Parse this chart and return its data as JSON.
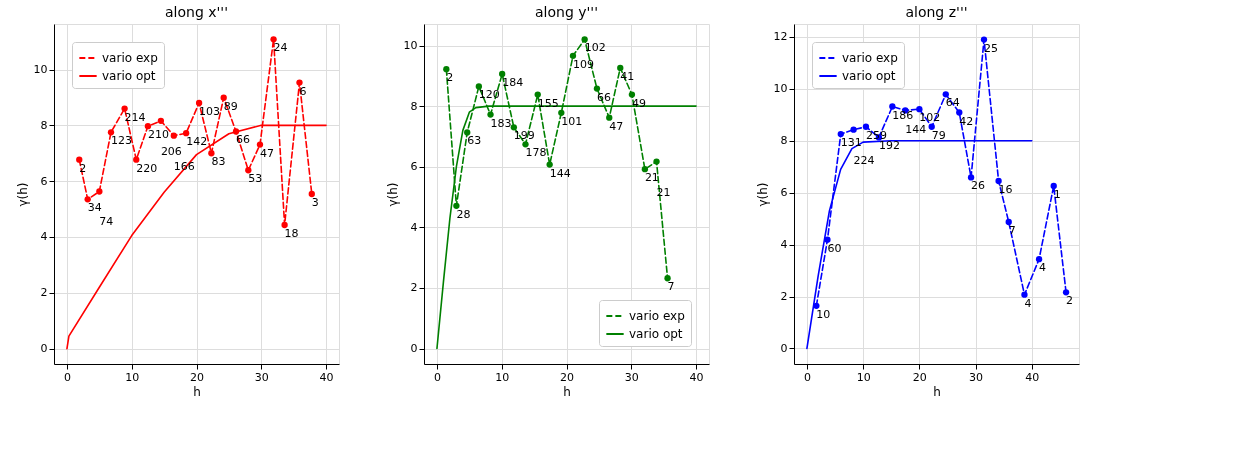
{
  "chart_data": [
    {
      "type": "line",
      "title": "along x'''",
      "xlabel": "h",
      "ylabel": "γ(h)",
      "xlim": [
        -2,
        42
      ],
      "ylim": [
        -0.55,
        11.63
      ],
      "xticks": [
        0,
        10,
        20,
        30,
        40
      ],
      "yticks": [
        0,
        2,
        4,
        6,
        8,
        10
      ],
      "grid": true,
      "legend": "top left",
      "series": [
        {
          "name": "vario exp",
          "color": "#ff0000",
          "line_style": "dashed",
          "marker": "circle",
          "x": [
            1.9,
            3.2,
            5.0,
            6.8,
            8.9,
            10.7,
            12.5,
            14.5,
            16.5,
            18.4,
            20.4,
            22.3,
            24.2,
            26.1,
            28.0,
            29.8,
            31.9,
            33.6,
            35.9,
            37.8
          ],
          "values": [
            6.77,
            5.35,
            5.63,
            7.75,
            8.6,
            6.77,
            7.97,
            8.16,
            7.63,
            7.72,
            8.8,
            7.0,
            8.99,
            7.78,
            6.39,
            7.31,
            11.08,
            4.43,
            9.53,
            5.54
          ]
        },
        {
          "name": "vario opt",
          "color": "#ff0000",
          "line_style": "solid",
          "marker": "none",
          "x": [
            0,
            0.3,
            5,
            10,
            15,
            20,
            25,
            30,
            35,
            40
          ],
          "values": [
            0,
            0.45,
            2.2,
            4.05,
            5.6,
            6.95,
            7.7,
            8.0,
            8.0,
            8.0
          ]
        }
      ],
      "annotations": [
        {
          "text": "2",
          "x": 1.9,
          "y": 6.77
        },
        {
          "text": "34",
          "x": 3.2,
          "y": 5.35
        },
        {
          "text": "74",
          "x": 5.0,
          "y": 5.63
        },
        {
          "text": "123",
          "x": 6.8,
          "y": 7.75
        },
        {
          "text": "214",
          "x": 8.9,
          "y": 8.6
        },
        {
          "text": "220",
          "x": 10.7,
          "y": 6.77
        },
        {
          "text": "210",
          "x": 12.5,
          "y": 7.97
        },
        {
          "text": "206",
          "x": 14.5,
          "y": 8.16
        },
        {
          "text": "166",
          "x": 16.5,
          "y": 7.63
        },
        {
          "text": "142",
          "x": 18.4,
          "y": 7.72
        },
        {
          "text": "103",
          "x": 20.4,
          "y": 8.8
        },
        {
          "text": "83",
          "x": 22.3,
          "y": 7.0
        },
        {
          "text": "89",
          "x": 24.2,
          "y": 8.99
        },
        {
          "text": "66",
          "x": 26.1,
          "y": 7.78
        },
        {
          "text": "53",
          "x": 28.0,
          "y": 6.39
        },
        {
          "text": "47",
          "x": 29.8,
          "y": 7.31
        },
        {
          "text": "24",
          "x": 31.9,
          "y": 11.08
        },
        {
          "text": "18",
          "x": 33.6,
          "y": 4.43
        },
        {
          "text": "6",
          "x": 35.9,
          "y": 9.53
        },
        {
          "text": "3",
          "x": 37.8,
          "y": 5.54
        }
      ]
    },
    {
      "type": "line",
      "title": "along y'''",
      "xlabel": "h",
      "ylabel": "γ(h)",
      "xlim": [
        -2,
        42
      ],
      "ylim": [
        -0.51,
        10.71
      ],
      "xticks": [
        0,
        10,
        20,
        30,
        40
      ],
      "yticks": [
        0,
        2,
        4,
        6,
        8,
        10
      ],
      "grid": true,
      "legend": "bottom right",
      "series": [
        {
          "name": "vario exp",
          "color": "#008000",
          "line_style": "dashed",
          "marker": "circle",
          "x": [
            1.45,
            3.0,
            4.67,
            6.47,
            8.27,
            10.07,
            11.87,
            13.67,
            15.56,
            17.4,
            19.2,
            21.0,
            22.8,
            24.7,
            26.6,
            28.3,
            30.1,
            32.1,
            33.9,
            35.6
          ],
          "values": [
            9.22,
            4.71,
            7.13,
            8.65,
            7.72,
            9.06,
            7.3,
            6.74,
            8.38,
            6.07,
            7.78,
            9.66,
            10.2,
            8.58,
            7.62,
            9.26,
            8.38,
            5.92,
            6.17,
            2.32
          ]
        },
        {
          "name": "vario opt",
          "color": "#008000",
          "line_style": "solid",
          "marker": "none",
          "x": [
            0,
            1,
            2,
            3,
            4,
            5,
            6,
            8,
            40
          ],
          "values": [
            0,
            2.2,
            4.3,
            6.0,
            7.2,
            7.8,
            7.95,
            8.0,
            8.0
          ]
        }
      ],
      "annotations": [
        {
          "text": "2",
          "x": 1.45,
          "y": 9.22
        },
        {
          "text": "28",
          "x": 3.0,
          "y": 4.71
        },
        {
          "text": "63",
          "x": 4.67,
          "y": 7.13
        },
        {
          "text": "120",
          "x": 6.47,
          "y": 8.65
        },
        {
          "text": "183",
          "x": 8.27,
          "y": 7.72
        },
        {
          "text": "184",
          "x": 10.07,
          "y": 9.06
        },
        {
          "text": "199",
          "x": 11.87,
          "y": 7.3
        },
        {
          "text": "178",
          "x": 13.67,
          "y": 6.74
        },
        {
          "text": "155",
          "x": 15.56,
          "y": 8.38
        },
        {
          "text": "144",
          "x": 17.4,
          "y": 6.07
        },
        {
          "text": "101",
          "x": 19.2,
          "y": 7.78
        },
        {
          "text": "109",
          "x": 21.0,
          "y": 9.66
        },
        {
          "text": "102",
          "x": 22.8,
          "y": 10.2
        },
        {
          "text": "66",
          "x": 24.7,
          "y": 8.58
        },
        {
          "text": "47",
          "x": 26.6,
          "y": 7.62
        },
        {
          "text": "41",
          "x": 28.3,
          "y": 9.26
        },
        {
          "text": "49",
          "x": 30.1,
          "y": 8.38
        },
        {
          "text": "21",
          "x": 32.1,
          "y": 5.92
        },
        {
          "text": "21",
          "x": 33.9,
          "y": 6.17
        },
        {
          "text": "7",
          "x": 35.6,
          "y": 2.32
        }
      ]
    },
    {
      "type": "line",
      "title": "along z'''",
      "xlabel": "h",
      "ylabel": "γ(h)",
      "xlim": [
        -2.3,
        48.4
      ],
      "ylim": [
        -0.6,
        12.5
      ],
      "xticks": [
        0,
        10,
        20,
        30,
        40
      ],
      "yticks": [
        0,
        2,
        4,
        6,
        8,
        10,
        12
      ],
      "grid": true,
      "legend": "top left",
      "series": [
        {
          "name": "vario exp",
          "color": "#0000ff",
          "line_style": "dashed",
          "marker": "circle",
          "x": [
            1.68,
            3.65,
            6.02,
            8.3,
            10.5,
            12.8,
            15.2,
            17.5,
            20.0,
            22.2,
            24.7,
            27.1,
            29.2,
            31.5,
            34.1,
            35.9,
            38.7,
            41.3,
            43.9,
            46.1
          ],
          "values": [
            1.64,
            4.19,
            8.26,
            8.43,
            8.54,
            8.13,
            9.32,
            9.17,
            9.22,
            8.54,
            9.79,
            9.09,
            6.59,
            11.9,
            6.45,
            4.87,
            2.07,
            3.44,
            6.26,
            2.16
          ]
        },
        {
          "name": "vario opt",
          "color": "#0000ff",
          "line_style": "solid",
          "marker": "none",
          "x": [
            0,
            2,
            4,
            6,
            8,
            10,
            15,
            40
          ],
          "values": [
            0,
            2.8,
            5.3,
            6.9,
            7.7,
            7.95,
            8.0,
            8.0
          ]
        }
      ],
      "annotations": [
        {
          "text": "10",
          "x": 1.68,
          "y": 1.64
        },
        {
          "text": "60",
          "x": 3.65,
          "y": 4.19
        },
        {
          "text": "131",
          "x": 6.02,
          "y": 8.26
        },
        {
          "text": "224",
          "x": 8.3,
          "y": 8.43
        },
        {
          "text": "259",
          "x": 10.5,
          "y": 8.54
        },
        {
          "text": "192",
          "x": 12.8,
          "y": 8.13
        },
        {
          "text": "186",
          "x": 15.2,
          "y": 9.32
        },
        {
          "text": "144",
          "x": 17.5,
          "y": 9.17
        },
        {
          "text": "102",
          "x": 20.0,
          "y": 9.22
        },
        {
          "text": "79",
          "x": 22.2,
          "y": 8.54
        },
        {
          "text": "64",
          "x": 24.7,
          "y": 9.79
        },
        {
          "text": "42",
          "x": 27.1,
          "y": 9.09
        },
        {
          "text": "26",
          "x": 29.2,
          "y": 6.59
        },
        {
          "text": "25",
          "x": 31.5,
          "y": 11.9
        },
        {
          "text": "16",
          "x": 34.1,
          "y": 6.45
        },
        {
          "text": "7",
          "x": 35.9,
          "y": 4.87
        },
        {
          "text": "4",
          "x": 38.7,
          "y": 2.07
        },
        {
          "text": "4",
          "x": 41.3,
          "y": 3.44
        },
        {
          "text": "1",
          "x": 43.9,
          "y": 6.26
        },
        {
          "text": "2",
          "x": 46.1,
          "y": 2.16
        }
      ]
    }
  ]
}
